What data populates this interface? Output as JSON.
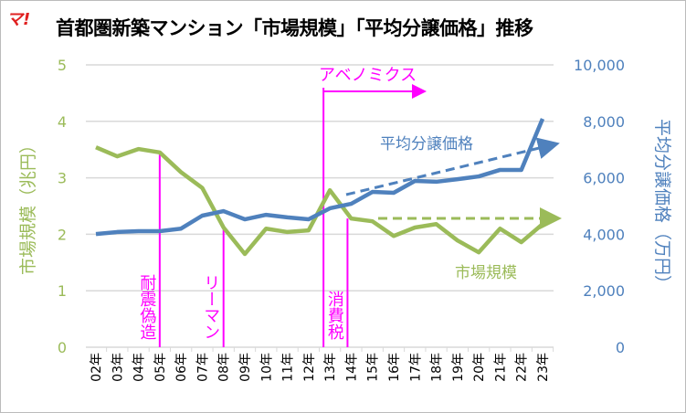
{
  "logo": "マ!",
  "chart_data": {
    "type": "line",
    "title": "首都圏新築マンション「市場規模」「平均分譲価格」推移",
    "ylabel_left": "市場規模（兆円）",
    "ylabel_right": "平均分譲価格（万円）",
    "ylim_left": [
      0,
      5
    ],
    "yticks_left": [
      "0",
      "1",
      "2",
      "3",
      "4",
      "5"
    ],
    "ylim_right": [
      0,
      10000
    ],
    "yticks_right": [
      "0",
      "2,000",
      "4,000",
      "6,000",
      "8,000",
      "10,000"
    ],
    "grid": true,
    "categories": [
      "02年",
      "03年",
      "04年",
      "05年",
      "06年",
      "07年",
      "08年",
      "09年",
      "10年",
      "11年",
      "12年",
      "13年",
      "14年",
      "15年",
      "16年",
      "17年",
      "18年",
      "19年",
      "20年",
      "21年",
      "22年",
      "23年"
    ],
    "series": [
      {
        "name": "市場規模",
        "axis": "left",
        "color": "#9bbb59",
        "values": [
          3.54,
          3.38,
          3.51,
          3.45,
          3.1,
          2.82,
          2.12,
          1.65,
          2.1,
          2.04,
          2.07,
          2.78,
          2.28,
          2.23,
          1.97,
          2.12,
          2.18,
          1.89,
          1.68,
          2.1,
          1.86,
          2.18
        ]
      },
      {
        "name": "平均分譲価格",
        "axis": "right",
        "color": "#4f81bd",
        "values": [
          4010,
          4080,
          4110,
          4110,
          4200,
          4660,
          4820,
          4530,
          4690,
          4600,
          4530,
          4920,
          5080,
          5500,
          5470,
          5890,
          5860,
          5950,
          6050,
          6280,
          6280,
          8090
        ]
      }
    ],
    "annotations": [
      {
        "label": "耐震偽造",
        "at": "05年"
      },
      {
        "label": "リーマン",
        "at": "08年"
      },
      {
        "label": "消費税",
        "at": "14年"
      },
      {
        "label": "アベノミクス",
        "from": "13年"
      }
    ],
    "annotation_color": "#ff00ff"
  }
}
